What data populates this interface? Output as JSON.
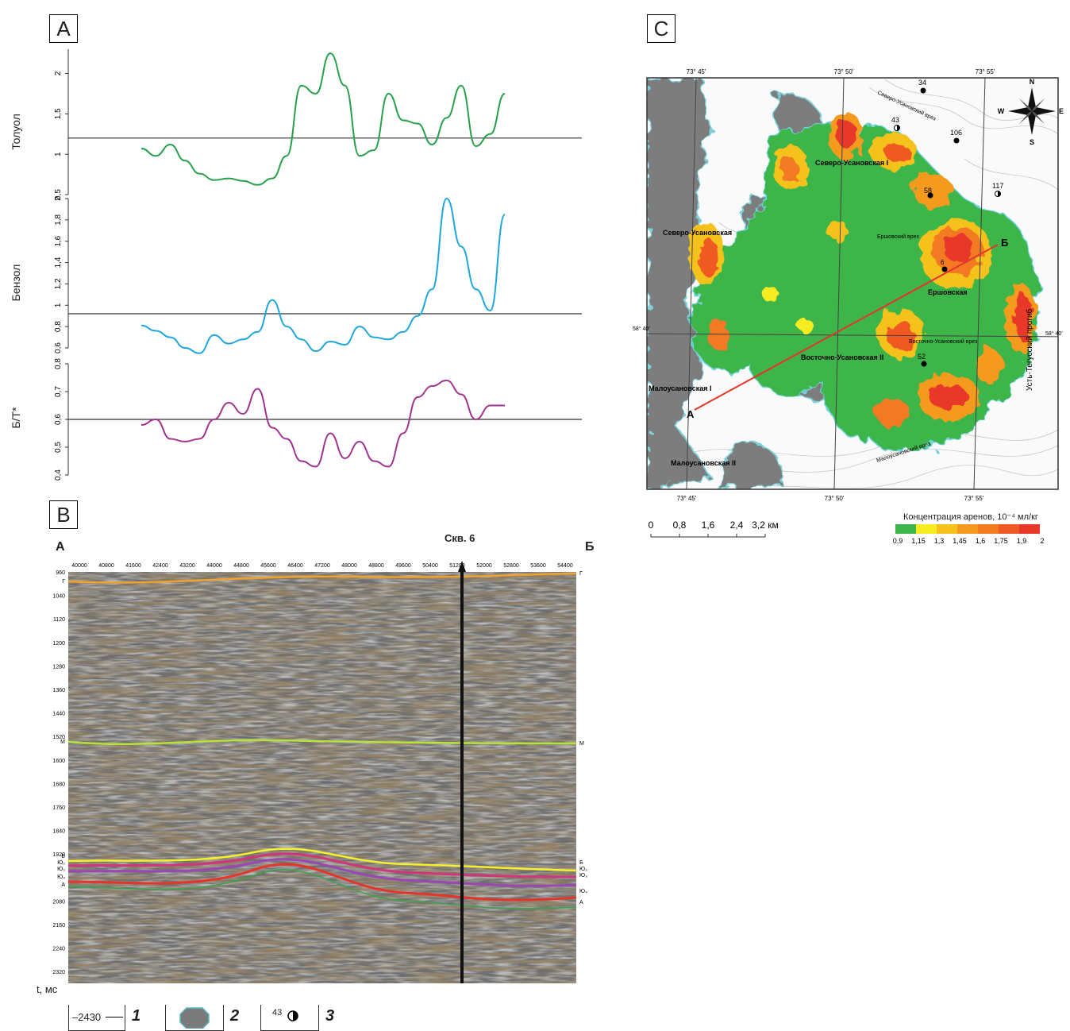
{
  "panels": {
    "a": "A",
    "b": "B",
    "c": "C"
  },
  "chart_data": [
    {
      "type": "line",
      "ylabel": "Толуол",
      "yticks": [
        "0,5",
        "1",
        "1,5",
        "2"
      ],
      "ylim": [
        0.5,
        2.3
      ],
      "baseline": 1.2,
      "color": "#27a04a",
      "x": [
        0,
        4,
        8,
        12,
        16,
        20,
        24,
        28,
        32,
        36,
        40,
        44,
        48,
        52,
        56,
        60,
        64,
        68,
        72,
        76,
        80,
        84,
        88,
        92,
        96,
        100
      ],
      "values": [
        1.07,
        0.98,
        1.12,
        0.92,
        0.76,
        0.68,
        0.7,
        0.67,
        0.62,
        0.7,
        0.98,
        1.85,
        1.75,
        2.25,
        1.85,
        0.98,
        1.05,
        1.75,
        1.42,
        1.38,
        1.12,
        1.45,
        1.85,
        1.1,
        1.25,
        1.75
      ]
    },
    {
      "type": "line",
      "ylabel": "Бензол",
      "yticks": [
        "0,6",
        "0,8",
        "1",
        "1,2",
        "1,4",
        "1,6",
        "1,8",
        "2"
      ],
      "ylim": [
        0.6,
        2.0
      ],
      "baseline": 0.92,
      "color": "#1fa6dc",
      "x": [
        0,
        4,
        8,
        12,
        16,
        20,
        24,
        28,
        32,
        36,
        40,
        44,
        48,
        52,
        56,
        60,
        64,
        68,
        72,
        76,
        80,
        84,
        88,
        92,
        96,
        100
      ],
      "values": [
        0.81,
        0.76,
        0.7,
        0.6,
        0.55,
        0.72,
        0.64,
        0.68,
        0.75,
        1.05,
        0.8,
        0.68,
        0.57,
        0.66,
        0.63,
        0.8,
        0.7,
        0.68,
        0.75,
        0.9,
        1.15,
        2.0,
        1.55,
        1.15,
        0.95,
        1.85
      ]
    },
    {
      "type": "line",
      "ylabel": "Б/Т*",
      "yticks": [
        "0,4",
        "0,5",
        "0,6",
        "0,7",
        "0,8"
      ],
      "ylim": [
        0.4,
        0.8
      ],
      "baseline": 0.6,
      "color": "#a0338f",
      "x": [
        0,
        4,
        8,
        12,
        16,
        20,
        24,
        28,
        32,
        36,
        40,
        44,
        48,
        52,
        56,
        60,
        64,
        68,
        72,
        76,
        80,
        84,
        88,
        92,
        96,
        100
      ],
      "values": [
        0.58,
        0.6,
        0.53,
        0.52,
        0.53,
        0.6,
        0.66,
        0.62,
        0.71,
        0.57,
        0.53,
        0.45,
        0.43,
        0.55,
        0.46,
        0.52,
        0.45,
        0.43,
        0.55,
        0.68,
        0.72,
        0.74,
        0.69,
        0.6,
        0.65,
        0.65
      ]
    }
  ],
  "seismic": {
    "left_label": "А",
    "right_label": "Б",
    "well_label": "Скв. 6",
    "t_unit": "t, мс",
    "traces": [
      "40000",
      "40800",
      "41600",
      "42400",
      "43200",
      "44000",
      "44800",
      "45600",
      "46400",
      "47200",
      "48000",
      "48800",
      "49600",
      "50400",
      "51200",
      "52000",
      "52800",
      "53600",
      "54400"
    ],
    "times": [
      "960",
      "1040",
      "1120",
      "1200",
      "1280",
      "1360",
      "1440",
      "1520",
      "1600",
      "1680",
      "1760",
      "1840",
      "1920",
      "2080",
      "2160",
      "2240",
      "2320"
    ],
    "horizons_left": [
      "Г",
      "М",
      "Б",
      "Ю₂",
      "Ю₃",
      "Ю₄",
      "А"
    ],
    "horizons_right": [
      "Г",
      "М",
      "Б",
      "Ю₂",
      "Ю₃",
      "Ю₄",
      "А"
    ]
  },
  "map": {
    "coords_top": [
      "73° 45'",
      "73° 50'",
      "73° 55'"
    ],
    "coords_bottom": [
      "73° 45'",
      "73° 50'",
      "73° 55'"
    ],
    "lat_left": "58° 40'",
    "lat_right": "58° 40'",
    "compass": {
      "n": "N",
      "s": "S",
      "e": "E",
      "w": "W"
    },
    "labels": {
      "severo_usanovskaya_i": "Северо-Усановская I",
      "severo_usanovskaya": "Северо-Усановская",
      "ershovskaya": "Ершовская",
      "vostochno_usanovskaya_ii": "Восточно-Усановская II",
      "malousanovskaya_i": "Малоусановская I",
      "malousanovskaya_ii": "Малоусановская II",
      "ust_tegussky": "Усть-Тегусский прогиб",
      "severo_usanovsky_vrez": "Северо-Усановский врез",
      "ershovsky_vrez": "Ершовский врез",
      "vostochno_usanovsky_vrez": "Восточно-Усановский врез",
      "malousanovsky_vrez": "Малоусановский врез",
      "profile_a": "А",
      "profile_b": "Б"
    },
    "wells": [
      "34",
      "43",
      "106",
      "117",
      "58",
      "6",
      "52"
    ]
  },
  "scale": {
    "ticks": [
      "0",
      "0,8",
      "1,6",
      "2,4",
      "3,2 км"
    ]
  },
  "color_legend": {
    "title": "Концентрация аренов, 10⁻⁴ мл/кг",
    "ticks": [
      "0,9",
      "1,15",
      "1,3",
      "1,45",
      "1,6",
      "1,75",
      "1,9",
      "2"
    ],
    "colors": [
      "#3cb54a",
      "#f7ec22",
      "#f5c21b",
      "#f49a1f",
      "#f27a20",
      "#ee5a24",
      "#e8382a"
    ]
  },
  "bottom_legend": {
    "item1_text": "–2430",
    "item1_num": "1",
    "item2_num": "2",
    "item3_text": "43",
    "item3_num": "3"
  }
}
